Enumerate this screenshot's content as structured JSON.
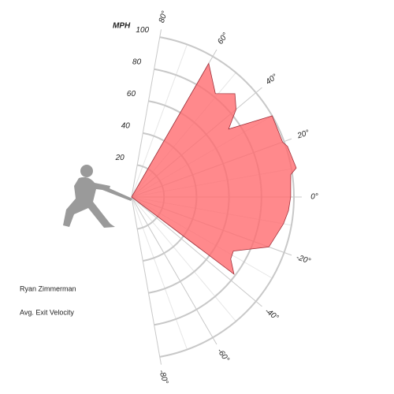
{
  "chart_data": {
    "type": "polar-area",
    "radial_label": "MPH",
    "player": "Ryan Zimmerman",
    "series": [
      {
        "name": "Avg. Exit Velocity",
        "color": "#ff6b6f",
        "x": [
          -37,
          -32,
          -28,
          -20,
          -10,
          -5,
          0,
          8,
          10,
          18,
          20,
          30,
          35,
          40,
          45,
          51,
          60
        ],
        "values": [
          79,
          72,
          71,
          90,
          95,
          97,
          98,
          99,
          103,
          101,
          99,
          100,
          73,
          84,
          90,
          82,
          95
        ]
      }
    ],
    "xlim": [
      -80,
      80
    ],
    "xticks": [
      {
        "value": -80,
        "label": "-80°"
      },
      {
        "value": -60,
        "label": "-60°"
      },
      {
        "value": -40,
        "label": "-40°"
      },
      {
        "value": -20,
        "label": "-20°"
      },
      {
        "value": 0,
        "label": "0°"
      },
      {
        "value": 20,
        "label": "20°"
      },
      {
        "value": 40,
        "label": "40°"
      },
      {
        "value": 60,
        "label": "60°"
      },
      {
        "value": 80,
        "label": "80°"
      }
    ],
    "ylim": [
      0,
      100
    ],
    "yticks": [
      20,
      40,
      60,
      80,
      100
    ]
  }
}
